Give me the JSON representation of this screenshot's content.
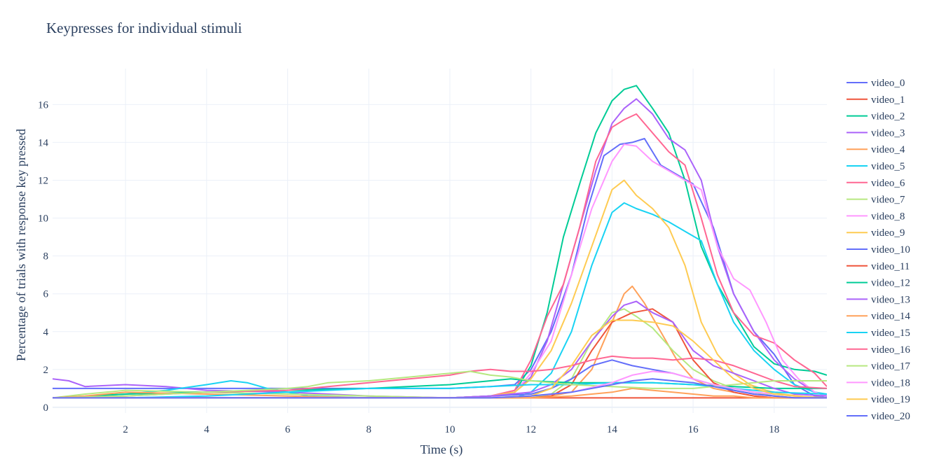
{
  "chart_data": {
    "type": "line",
    "title": "Keypresses for individual stimuli",
    "xlabel": "Time (s)",
    "ylabel": "Percentage of trials with response key pressed",
    "xlim": [
      0.2,
      19.3
    ],
    "ylim": [
      -0.3,
      17.9
    ],
    "xticks": [
      2,
      4,
      6,
      8,
      10,
      12,
      14,
      16,
      18
    ],
    "yticks": [
      0,
      2,
      4,
      6,
      8,
      10,
      12,
      14,
      16
    ],
    "grid": true,
    "legend_position": "right",
    "series": [
      {
        "name": "video_0",
        "color": "#636efa",
        "x": [
          0.2,
          2,
          4,
          6,
          8,
          10,
          11,
          11.6,
          12,
          12.5,
          13,
          13.4,
          13.8,
          14.2,
          14.5,
          14.8,
          15.2,
          15.6,
          16,
          16.5,
          17,
          17.5,
          18,
          18.5,
          19,
          19.3
        ],
        "y": [
          1.0,
          1.0,
          1.0,
          1.0,
          1.0,
          1.0,
          1.1,
          1.2,
          2.0,
          4.0,
          7.0,
          10.5,
          13.3,
          13.9,
          14.0,
          14.2,
          12.8,
          12.3,
          11.8,
          9.5,
          6.0,
          4.0,
          2.8,
          1.2,
          0.6,
          0.5
        ]
      },
      {
        "name": "video_1",
        "color": "#ef553b",
        "x": [
          0.2,
          2,
          4,
          6,
          8,
          10,
          12,
          14,
          16,
          18,
          19.3
        ],
        "y": [
          0.5,
          0.5,
          0.5,
          0.5,
          0.5,
          0.5,
          0.5,
          0.5,
          0.5,
          0.5,
          0.5
        ]
      },
      {
        "name": "video_2",
        "color": "#00cc96",
        "x": [
          0.2,
          2,
          4,
          6,
          8,
          10,
          11,
          11.6,
          12,
          12.4,
          12.8,
          13.2,
          13.6,
          14,
          14.3,
          14.6,
          15,
          15.4,
          15.8,
          16.2,
          16.6,
          17,
          17.5,
          18,
          18.5,
          19,
          19.3
        ],
        "y": [
          0.5,
          0.5,
          0.5,
          0.5,
          0.5,
          0.5,
          0.6,
          0.8,
          2.2,
          5.0,
          9.0,
          11.8,
          14.5,
          16.2,
          16.8,
          17.0,
          15.8,
          14.5,
          12.0,
          8.5,
          6.5,
          5.0,
          3.2,
          2.3,
          2.0,
          1.9,
          1.7
        ]
      },
      {
        "name": "video_3",
        "color": "#ab63fa",
        "x": [
          0.2,
          0.6,
          1,
          2,
          3,
          4,
          6,
          8,
          10,
          11,
          11.6,
          12,
          12.4,
          12.8,
          13.2,
          13.6,
          14,
          14.3,
          14.6,
          15,
          15.4,
          15.8,
          16.2,
          16.6,
          17,
          17.5,
          18,
          18.5,
          19,
          19.3
        ],
        "y": [
          1.5,
          1.4,
          1.1,
          1.2,
          1.1,
          0.9,
          0.8,
          0.6,
          0.5,
          0.6,
          0.8,
          1.6,
          3.5,
          6.5,
          9.5,
          12.5,
          15.0,
          15.8,
          16.3,
          15.5,
          14.2,
          13.6,
          12.0,
          8.5,
          6.0,
          4.0,
          2.5,
          1.5,
          0.8,
          0.6
        ]
      },
      {
        "name": "video_4",
        "color": "#ffa15a",
        "x": [
          0.2,
          2,
          4,
          6,
          8,
          10,
          11,
          12,
          12.5,
          13,
          13.5,
          14,
          14.3,
          14.5,
          14.8,
          15.2,
          15.6,
          16,
          16.5,
          17,
          17.5,
          18,
          18.5,
          19.3
        ],
        "y": [
          0.5,
          0.5,
          0.5,
          0.5,
          0.5,
          0.5,
          0.5,
          0.5,
          0.6,
          0.8,
          2.0,
          4.5,
          6.0,
          6.4,
          5.5,
          4.0,
          2.5,
          1.5,
          1.0,
          0.8,
          0.6,
          0.5,
          0.5,
          0.5
        ]
      },
      {
        "name": "video_5",
        "color": "#19d3f3",
        "x": [
          0.2,
          2,
          3,
          4,
          4.6,
          5,
          5.5,
          6,
          6.5,
          8,
          10,
          11,
          11.6,
          12,
          12.5,
          13,
          13.5,
          14,
          14.3,
          14.6,
          15,
          15.4,
          15.8,
          16.2,
          16.6,
          17,
          17.5,
          18,
          18.5,
          19,
          19.3
        ],
        "y": [
          0.5,
          0.7,
          0.9,
          1.2,
          1.4,
          1.3,
          1.0,
          0.8,
          0.6,
          0.5,
          0.5,
          0.5,
          0.5,
          0.8,
          1.8,
          4.0,
          7.5,
          10.3,
          10.8,
          10.5,
          10.2,
          9.8,
          9.3,
          8.8,
          6.5,
          4.5,
          3.0,
          2.0,
          1.2,
          0.8,
          0.7
        ]
      },
      {
        "name": "video_6",
        "color": "#ff6692",
        "x": [
          0.2,
          2,
          4,
          6,
          8,
          10,
          11,
          11.6,
          12,
          12.4,
          12.8,
          13.2,
          13.6,
          14,
          14.3,
          14.6,
          15,
          15.4,
          15.8,
          16.2,
          16.6,
          17,
          17.5,
          18,
          18.5,
          19,
          19.3
        ],
        "y": [
          0.5,
          0.5,
          0.5,
          0.5,
          0.5,
          0.5,
          0.6,
          0.9,
          2.5,
          4.8,
          6.5,
          9.5,
          13.0,
          14.8,
          15.2,
          15.5,
          14.5,
          13.5,
          12.8,
          10.0,
          7.0,
          5.0,
          3.8,
          3.4,
          2.5,
          1.8,
          1.1
        ]
      },
      {
        "name": "video_7",
        "color": "#b6e880",
        "x": [
          0.2,
          1,
          2,
          4,
          6,
          8,
          10,
          11,
          12,
          12.5,
          13,
          13.5,
          14,
          14.3,
          14.6,
          15,
          15.5,
          16,
          16.5,
          17,
          17.5,
          18,
          18.5,
          19.3
        ],
        "y": [
          0.5,
          0.7,
          0.9,
          0.8,
          0.7,
          0.6,
          0.5,
          0.5,
          0.5,
          0.7,
          1.5,
          3.5,
          5.0,
          5.2,
          4.8,
          4.2,
          3.0,
          2.0,
          1.4,
          1.0,
          0.8,
          0.6,
          0.5,
          0.5
        ]
      },
      {
        "name": "video_8",
        "color": "#ff97ff",
        "x": [
          0.2,
          2,
          4,
          6,
          8,
          10,
          11,
          11.6,
          12,
          12.5,
          13,
          13.5,
          14,
          14.3,
          14.6,
          15,
          15.4,
          15.8,
          16.2,
          16.6,
          17,
          17.4,
          17.8,
          18.2,
          18.6,
          19,
          19.3
        ],
        "y": [
          0.5,
          0.5,
          0.5,
          0.5,
          0.5,
          0.5,
          0.5,
          0.8,
          1.8,
          3.5,
          7.0,
          10.5,
          13.0,
          13.9,
          13.8,
          13.0,
          12.5,
          12.0,
          11.5,
          8.5,
          6.8,
          6.2,
          4.5,
          2.5,
          1.5,
          0.8,
          0.6
        ]
      },
      {
        "name": "video_9",
        "color": "#fecb52",
        "x": [
          0.2,
          2,
          4,
          6,
          8,
          10,
          11,
          11.6,
          12,
          12.5,
          13,
          13.5,
          14,
          14.3,
          14.6,
          15,
          15.4,
          15.8,
          16.2,
          16.6,
          17,
          17.4,
          17.8,
          18.2,
          18.6,
          19,
          19.3
        ],
        "y": [
          0.5,
          0.5,
          0.5,
          0.5,
          0.5,
          0.5,
          0.6,
          0.8,
          1.5,
          3.0,
          5.5,
          8.5,
          11.5,
          12.0,
          11.2,
          10.5,
          9.5,
          7.5,
          4.5,
          2.8,
          1.8,
          1.2,
          0.9,
          0.7,
          0.6,
          0.5,
          0.5
        ]
      },
      {
        "name": "video_10",
        "color": "#636efa",
        "x": [
          0.2,
          2,
          4,
          6,
          8,
          10,
          11,
          12,
          12.5,
          13,
          13.5,
          14,
          14.5,
          15,
          15.5,
          16,
          16.5,
          17,
          17.5,
          18,
          18.5,
          19.3
        ],
        "y": [
          0.5,
          0.5,
          0.5,
          0.5,
          0.5,
          0.5,
          0.6,
          0.7,
          1.0,
          1.5,
          2.2,
          2.5,
          2.2,
          2.0,
          1.8,
          1.5,
          1.2,
          0.9,
          0.7,
          0.6,
          0.5,
          0.5
        ]
      },
      {
        "name": "video_11",
        "color": "#ef553b",
        "x": [
          0.2,
          2,
          4,
          6,
          8,
          10,
          11,
          12,
          12.5,
          13,
          13.5,
          14,
          14.5,
          15,
          15.5,
          16,
          16.5,
          17,
          17.5,
          18,
          19.3
        ],
        "y": [
          0.5,
          0.5,
          0.5,
          0.5,
          0.5,
          0.5,
          0.5,
          0.5,
          0.6,
          1.2,
          3.0,
          4.5,
          5.0,
          5.2,
          4.5,
          2.5,
          1.3,
          0.8,
          0.6,
          0.5,
          0.5
        ]
      },
      {
        "name": "video_12",
        "color": "#00cc96",
        "x": [
          0.2,
          2,
          4,
          6,
          8,
          10,
          11,
          11.5,
          12,
          13,
          14,
          15,
          16,
          17,
          18,
          19.3
        ],
        "y": [
          0.5,
          0.7,
          0.8,
          0.9,
          1.0,
          1.2,
          1.4,
          1.5,
          1.4,
          1.3,
          1.3,
          1.3,
          1.2,
          1.1,
          1.0,
          1.0
        ]
      },
      {
        "name": "video_13",
        "color": "#ab63fa",
        "x": [
          0.2,
          2,
          4,
          6,
          8,
          10,
          11,
          12,
          12.5,
          13,
          13.5,
          14,
          14.3,
          14.6,
          15,
          15.5,
          16,
          16.5,
          17,
          17.5,
          18,
          18.5,
          19.3
        ],
        "y": [
          0.5,
          0.5,
          0.5,
          0.5,
          0.5,
          0.5,
          0.6,
          0.8,
          1.2,
          2.0,
          3.5,
          4.8,
          5.4,
          5.6,
          5.0,
          4.5,
          3.0,
          2.2,
          1.8,
          1.4,
          1.0,
          0.7,
          0.6
        ]
      },
      {
        "name": "video_14",
        "color": "#ffa15a",
        "x": [
          0.2,
          1,
          2,
          4,
          6,
          8,
          10,
          11,
          12,
          13,
          14,
          14.5,
          15,
          15.5,
          16,
          16.5,
          17,
          17.5,
          18,
          19.3
        ],
        "y": [
          0.5,
          0.6,
          0.8,
          0.7,
          0.6,
          0.5,
          0.5,
          0.5,
          0.5,
          0.6,
          0.8,
          1.0,
          0.9,
          0.8,
          0.7,
          0.6,
          0.6,
          0.5,
          0.5,
          0.5
        ]
      },
      {
        "name": "video_15",
        "color": "#19d3f3",
        "x": [
          0.2,
          2,
          4,
          6,
          8,
          10,
          11,
          12,
          13,
          14,
          15,
          16,
          17,
          18,
          19.3
        ],
        "y": [
          0.5,
          0.5,
          0.6,
          0.8,
          1.0,
          1.0,
          1.1,
          1.2,
          1.2,
          1.3,
          1.3,
          1.2,
          1.0,
          0.8,
          0.7
        ]
      },
      {
        "name": "video_16",
        "color": "#ff6692",
        "x": [
          0.2,
          2,
          4,
          6,
          7,
          8,
          9,
          10,
          10.5,
          11,
          11.5,
          12,
          12.5,
          13,
          13.5,
          14,
          14.5,
          15,
          15.5,
          16,
          16.5,
          17,
          17.5,
          18,
          18.5,
          19.3
        ],
        "y": [
          0.5,
          0.6,
          0.8,
          0.9,
          1.1,
          1.3,
          1.5,
          1.7,
          1.9,
          2.0,
          1.9,
          1.9,
          2.0,
          2.2,
          2.5,
          2.7,
          2.6,
          2.6,
          2.5,
          2.6,
          2.5,
          2.2,
          1.8,
          1.4,
          1.1,
          1.0
        ]
      },
      {
        "name": "video_17",
        "color": "#b6e880",
        "x": [
          0.2,
          2,
          4,
          5,
          6,
          6.5,
          7,
          8,
          9,
          10,
          10.5,
          11,
          11.5,
          12,
          13,
          14,
          15,
          16,
          17,
          18,
          19.3
        ],
        "y": [
          0.5,
          0.6,
          0.8,
          0.9,
          1.0,
          1.1,
          1.3,
          1.4,
          1.6,
          1.8,
          1.9,
          1.7,
          1.6,
          1.4,
          1.2,
          1.1,
          1.0,
          1.0,
          1.2,
          1.4,
          1.4
        ]
      },
      {
        "name": "video_18",
        "color": "#ff97ff",
        "x": [
          0.2,
          2,
          4,
          6,
          8,
          10,
          11,
          12,
          13,
          14,
          14.5,
          15,
          15.5,
          16,
          16.5,
          17,
          17.5,
          18,
          18.5,
          19.3
        ],
        "y": [
          0.5,
          0.5,
          0.5,
          0.5,
          0.5,
          0.5,
          0.5,
          0.6,
          0.8,
          1.3,
          1.7,
          1.9,
          1.8,
          1.5,
          1.2,
          1.0,
          0.8,
          0.7,
          0.6,
          0.5
        ]
      },
      {
        "name": "video_19",
        "color": "#fecb52",
        "x": [
          0.2,
          2,
          4,
          6,
          8,
          10,
          11,
          12,
          12.5,
          13,
          13.5,
          14,
          14.5,
          15,
          15.5,
          16,
          16.5,
          17,
          17.5,
          18,
          18.5,
          19.3
        ],
        "y": [
          0.5,
          0.5,
          0.5,
          0.5,
          0.5,
          0.5,
          0.5,
          0.6,
          1.0,
          2.2,
          3.8,
          4.6,
          4.6,
          4.5,
          4.3,
          3.5,
          2.5,
          1.5,
          1.0,
          0.7,
          0.6,
          0.5
        ]
      },
      {
        "name": "video_20",
        "color": "#636efa",
        "x": [
          0.2,
          2,
          4,
          6,
          8,
          10,
          11,
          12,
          13,
          14,
          14.5,
          15,
          15.5,
          16,
          16.5,
          17,
          17.5,
          18,
          18.5,
          19.3
        ],
        "y": [
          0.5,
          0.5,
          0.5,
          0.5,
          0.5,
          0.5,
          0.5,
          0.6,
          0.8,
          1.2,
          1.4,
          1.5,
          1.4,
          1.3,
          1.1,
          0.9,
          0.7,
          0.6,
          0.5,
          0.5
        ]
      }
    ]
  }
}
